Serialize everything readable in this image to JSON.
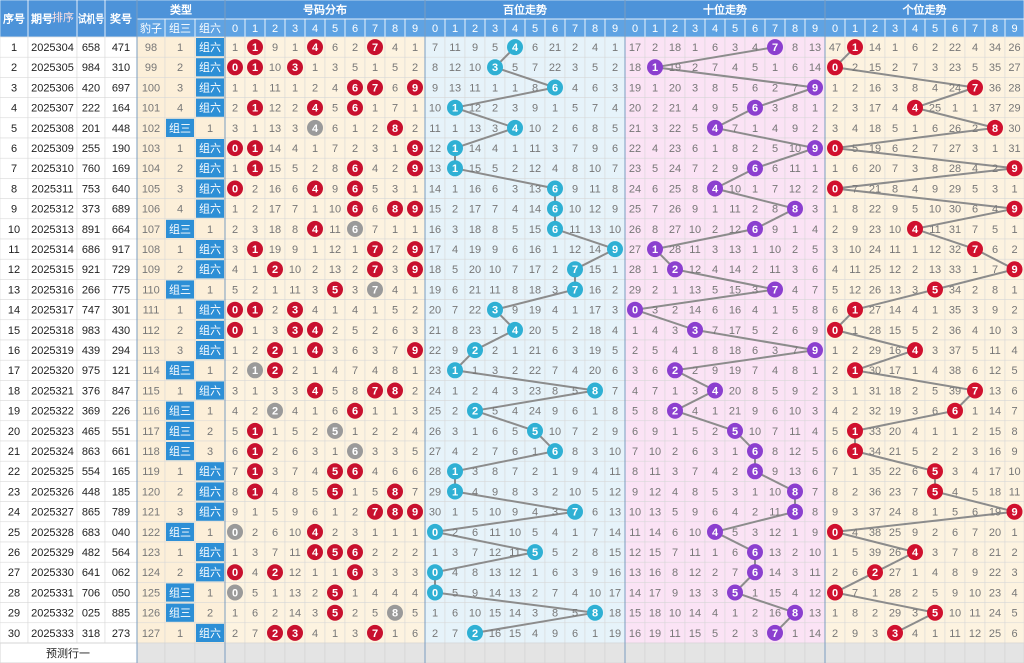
{
  "header": {
    "seq": "序号",
    "issue": "期号",
    "sort": "排序",
    "trial": "试机号",
    "prize": "奖号",
    "type": "类型",
    "types": [
      "豹子",
      "组三",
      "组六"
    ],
    "groups": [
      "号码分布",
      "百位走势",
      "十位走势",
      "个位走势"
    ],
    "digits": [
      "0",
      "1",
      "2",
      "3",
      "4",
      "5",
      "6",
      "7",
      "8",
      "9"
    ]
  },
  "rows": [
    [
      "1",
      "2025304",
      "658",
      "471",
      "98",
      "1",
      "组六",
      "1",
      "1",
      "9",
      "1",
      "4",
      "6",
      "2",
      "7",
      "4",
      "1",
      "7",
      "11",
      "9",
      "5",
      "4",
      "6",
      "21",
      "2",
      "4",
      "1",
      "17",
      "2",
      "18",
      "1",
      "6",
      "3",
      "4",
      "7",
      "8",
      "13",
      "47",
      "1",
      "14",
      "1",
      "6",
      "2",
      "22",
      "4",
      "34",
      "26"
    ],
    [
      "2",
      "2025305",
      "984",
      "310",
      "99",
      "2",
      "组六",
      "0",
      "1",
      "10",
      "3",
      "1",
      "3",
      "5",
      "1",
      "5",
      "2",
      "8",
      "12",
      "10",
      "3",
      "5",
      "7",
      "22",
      "3",
      "5",
      "2",
      "18",
      "1",
      "19",
      "2",
      "7",
      "4",
      "5",
      "1",
      "6",
      "14",
      "0",
      "2",
      "15",
      "2",
      "7",
      "3",
      "23",
      "5",
      "35",
      "27"
    ],
    [
      "3",
      "2025306",
      "420",
      "697",
      "100",
      "3",
      "组六",
      "1",
      "1",
      "11",
      "1",
      "2",
      "4",
      "6",
      "7",
      "6",
      "9",
      "9",
      "13",
      "11",
      "1",
      "1",
      "8",
      "6",
      "4",
      "6",
      "3",
      "19",
      "1",
      "20",
      "3",
      "8",
      "5",
      "6",
      "2",
      "7",
      "9",
      "1",
      "2",
      "16",
      "3",
      "8",
      "4",
      "24",
      "7",
      "36",
      "28"
    ],
    [
      "4",
      "2025307",
      "222",
      "164",
      "101",
      "4",
      "组六",
      "2",
      "1",
      "12",
      "2",
      "4",
      "5",
      "6",
      "1",
      "7",
      "1",
      "10",
      "1",
      "12",
      "2",
      "3",
      "9",
      "1",
      "5",
      "7",
      "4",
      "20",
      "2",
      "21",
      "4",
      "9",
      "5",
      "6",
      "3",
      "8",
      "1",
      "2",
      "3",
      "17",
      "4",
      "4",
      "25",
      "1",
      "1",
      "37",
      "29"
    ],
    [
      "5",
      "2025308",
      "201",
      "448",
      "102",
      "组三",
      "1",
      "3",
      "1",
      "13",
      "3",
      "4",
      "6",
      "1",
      "2",
      "8",
      "2",
      "11",
      "1",
      "13",
      "3",
      "4",
      "10",
      "2",
      "6",
      "8",
      "5",
      "21",
      "3",
      "22",
      "5",
      "4",
      "7",
      "1",
      "4",
      "9",
      "2",
      "3",
      "4",
      "18",
      "5",
      "1",
      "6",
      "26",
      "2",
      "8",
      "30"
    ],
    [
      "6",
      "2025309",
      "255",
      "190",
      "103",
      "1",
      "组六",
      "0",
      "1",
      "14",
      "4",
      "1",
      "7",
      "2",
      "3",
      "1",
      "9",
      "12",
      "1",
      "14",
      "4",
      "1",
      "11",
      "3",
      "7",
      "9",
      "6",
      "22",
      "4",
      "23",
      "6",
      "1",
      "8",
      "2",
      "5",
      "10",
      "9",
      "0",
      "5",
      "19",
      "6",
      "2",
      "7",
      "27",
      "3",
      "1",
      "31"
    ],
    [
      "7",
      "2025310",
      "760",
      "169",
      "104",
      "2",
      "组六",
      "1",
      "1",
      "15",
      "5",
      "2",
      "8",
      "6",
      "4",
      "2",
      "9",
      "13",
      "1",
      "15",
      "5",
      "2",
      "12",
      "4",
      "8",
      "10",
      "7",
      "23",
      "5",
      "24",
      "7",
      "2",
      "9",
      "6",
      "6",
      "11",
      "1",
      "1",
      "6",
      "20",
      "7",
      "3",
      "8",
      "28",
      "4",
      "2",
      "9"
    ],
    [
      "8",
      "2025311",
      "753",
      "640",
      "105",
      "3",
      "组六",
      "0",
      "2",
      "16",
      "6",
      "4",
      "9",
      "6",
      "5",
      "3",
      "1",
      "14",
      "1",
      "16",
      "6",
      "3",
      "13",
      "6",
      "9",
      "11",
      "8",
      "24",
      "6",
      "25",
      "8",
      "4",
      "10",
      "1",
      "7",
      "12",
      "2",
      "0",
      "7",
      "21",
      "8",
      "4",
      "9",
      "29",
      "5",
      "3",
      "1"
    ],
    [
      "9",
      "2025312",
      "373",
      "689",
      "106",
      "4",
      "组六",
      "1",
      "2",
      "17",
      "7",
      "1",
      "10",
      "6",
      "6",
      "8",
      "9",
      "15",
      "2",
      "17",
      "7",
      "4",
      "14",
      "6",
      "10",
      "12",
      "9",
      "25",
      "7",
      "26",
      "9",
      "1",
      "11",
      "2",
      "8",
      "8",
      "3",
      "1",
      "8",
      "22",
      "9",
      "5",
      "10",
      "30",
      "6",
      "4",
      "9"
    ],
    [
      "10",
      "2025313",
      "891",
      "664",
      "107",
      "组三",
      "1",
      "2",
      "3",
      "18",
      "8",
      "4",
      "11",
      "6",
      "7",
      "1",
      "1",
      "16",
      "3",
      "18",
      "8",
      "5",
      "15",
      "6",
      "11",
      "13",
      "10",
      "26",
      "8",
      "27",
      "10",
      "2",
      "12",
      "6",
      "9",
      "1",
      "4",
      "2",
      "9",
      "23",
      "10",
      "4",
      "11",
      "31",
      "7",
      "5",
      "1"
    ],
    [
      "11",
      "2025314",
      "686",
      "917",
      "108",
      "1",
      "组六",
      "3",
      "1",
      "19",
      "9",
      "1",
      "12",
      "1",
      "7",
      "2",
      "9",
      "17",
      "4",
      "19",
      "9",
      "6",
      "16",
      "1",
      "12",
      "14",
      "9",
      "27",
      "1",
      "28",
      "11",
      "3",
      "13",
      "1",
      "10",
      "2",
      "5",
      "3",
      "10",
      "24",
      "11",
      "1",
      "12",
      "32",
      "7",
      "6",
      "2"
    ],
    [
      "12",
      "2025315",
      "921",
      "729",
      "109",
      "2",
      "组六",
      "4",
      "1",
      "2",
      "10",
      "2",
      "13",
      "2",
      "7",
      "3",
      "9",
      "18",
      "5",
      "20",
      "10",
      "7",
      "17",
      "2",
      "7",
      "15",
      "1",
      "28",
      "1",
      "2",
      "12",
      "4",
      "14",
      "2",
      "11",
      "3",
      "6",
      "4",
      "11",
      "25",
      "12",
      "2",
      "13",
      "33",
      "1",
      "7",
      "9"
    ],
    [
      "13",
      "2025316",
      "266",
      "775",
      "110",
      "组三",
      "1",
      "5",
      "2",
      "1",
      "11",
      "3",
      "5",
      "3",
      "7",
      "4",
      "1",
      "19",
      "6",
      "21",
      "11",
      "8",
      "18",
      "3",
      "7",
      "16",
      "2",
      "29",
      "2",
      "1",
      "13",
      "5",
      "15",
      "3",
      "7",
      "4",
      "7",
      "5",
      "12",
      "26",
      "13",
      "3",
      "5",
      "34",
      "2",
      "8",
      "1"
    ],
    [
      "14",
      "2025317",
      "747",
      "301",
      "111",
      "1",
      "组六",
      "0",
      "1",
      "2",
      "3",
      "4",
      "1",
      "4",
      "1",
      "5",
      "2",
      "20",
      "7",
      "22",
      "3",
      "9",
      "19",
      "4",
      "1",
      "17",
      "3",
      "0",
      "3",
      "2",
      "14",
      "6",
      "16",
      "4",
      "1",
      "5",
      "8",
      "6",
      "1",
      "27",
      "14",
      "4",
      "1",
      "35",
      "3",
      "9",
      "2"
    ],
    [
      "15",
      "2025318",
      "983",
      "430",
      "112",
      "2",
      "组六",
      "0",
      "1",
      "3",
      "3",
      "4",
      "2",
      "5",
      "2",
      "6",
      "3",
      "21",
      "8",
      "23",
      "1",
      "4",
      "20",
      "5",
      "2",
      "18",
      "4",
      "1",
      "4",
      "3",
      "3",
      "7",
      "17",
      "5",
      "2",
      "6",
      "9",
      "0",
      "1",
      "28",
      "15",
      "5",
      "2",
      "36",
      "4",
      "10",
      "3"
    ],
    [
      "16",
      "2025319",
      "439",
      "294",
      "113",
      "3",
      "组六",
      "1",
      "2",
      "2",
      "1",
      "4",
      "3",
      "6",
      "3",
      "7",
      "9",
      "22",
      "9",
      "2",
      "2",
      "1",
      "21",
      "6",
      "3",
      "19",
      "5",
      "2",
      "5",
      "4",
      "1",
      "8",
      "18",
      "6",
      "3",
      "7",
      "9",
      "1",
      "2",
      "29",
      "16",
      "4",
      "3",
      "37",
      "5",
      "11",
      "4"
    ],
    [
      "17",
      "2025320",
      "975",
      "121",
      "114",
      "组三",
      "1",
      "2",
      "1",
      "2",
      "2",
      "1",
      "4",
      "7",
      "4",
      "8",
      "1",
      "23",
      "1",
      "1",
      "3",
      "2",
      "22",
      "7",
      "4",
      "20",
      "6",
      "3",
      "6",
      "2",
      "2",
      "9",
      "19",
      "7",
      "4",
      "8",
      "1",
      "2",
      "1",
      "30",
      "17",
      "1",
      "4",
      "38",
      "6",
      "12",
      "5"
    ],
    [
      "18",
      "2025321",
      "376",
      "847",
      "115",
      "1",
      "组六",
      "3",
      "1",
      "3",
      "3",
      "4",
      "5",
      "8",
      "7",
      "8",
      "2",
      "24",
      "1",
      "2",
      "4",
      "3",
      "23",
      "8",
      "5",
      "8",
      "7",
      "4",
      "7",
      "1",
      "3",
      "4",
      "20",
      "8",
      "5",
      "9",
      "2",
      "3",
      "1",
      "31",
      "18",
      "2",
      "5",
      "39",
      "7",
      "13",
      "6"
    ],
    [
      "19",
      "2025322",
      "369",
      "226",
      "116",
      "组三",
      "1",
      "4",
      "2",
      "2",
      "4",
      "1",
      "6",
      "6",
      "1",
      "1",
      "3",
      "25",
      "2",
      "2",
      "5",
      "4",
      "24",
      "9",
      "6",
      "1",
      "8",
      "5",
      "8",
      "2",
      "4",
      "1",
      "21",
      "9",
      "6",
      "10",
      "3",
      "4",
      "2",
      "32",
      "19",
      "3",
      "6",
      "6",
      "1",
      "14",
      "7"
    ],
    [
      "20",
      "2025323",
      "465",
      "551",
      "117",
      "组三",
      "2",
      "5",
      "1",
      "1",
      "5",
      "2",
      "5",
      "1",
      "2",
      "2",
      "4",
      "26",
      "3",
      "1",
      "6",
      "5",
      "5",
      "10",
      "7",
      "2",
      "9",
      "6",
      "9",
      "1",
      "5",
      "2",
      "5",
      "10",
      "7",
      "11",
      "4",
      "5",
      "1",
      "33",
      "20",
      "4",
      "1",
      "1",
      "2",
      "15",
      "8"
    ],
    [
      "21",
      "2025324",
      "863",
      "661",
      "118",
      "组三",
      "3",
      "6",
      "1",
      "2",
      "6",
      "3",
      "1",
      "6",
      "3",
      "3",
      "5",
      "27",
      "4",
      "2",
      "7",
      "6",
      "1",
      "6",
      "8",
      "3",
      "10",
      "7",
      "10",
      "2",
      "6",
      "3",
      "1",
      "6",
      "8",
      "12",
      "5",
      "6",
      "1",
      "34",
      "21",
      "5",
      "2",
      "2",
      "3",
      "16",
      "9"
    ],
    [
      "22",
      "2025325",
      "554",
      "165",
      "119",
      "1",
      "组六",
      "7",
      "1",
      "3",
      "7",
      "4",
      "5",
      "6",
      "4",
      "6",
      "6",
      "28",
      "1",
      "3",
      "8",
      "7",
      "2",
      "1",
      "9",
      "4",
      "11",
      "8",
      "11",
      "3",
      "7",
      "4",
      "2",
      "6",
      "9",
      "13",
      "6",
      "7",
      "1",
      "35",
      "22",
      "6",
      "5",
      "3",
      "4",
      "17",
      "10"
    ],
    [
      "23",
      "2025326",
      "448",
      "185",
      "120",
      "2",
      "组六",
      "8",
      "1",
      "4",
      "8",
      "5",
      "5",
      "1",
      "5",
      "8",
      "7",
      "29",
      "1",
      "4",
      "9",
      "8",
      "3",
      "2",
      "10",
      "5",
      "12",
      "9",
      "12",
      "4",
      "8",
      "5",
      "3",
      "1",
      "10",
      "8",
      "7",
      "8",
      "2",
      "36",
      "23",
      "7",
      "5",
      "4",
      "5",
      "18",
      "11"
    ],
    [
      "24",
      "2025327",
      "865",
      "789",
      "121",
      "3",
      "组六",
      "9",
      "1",
      "5",
      "9",
      "6",
      "1",
      "2",
      "7",
      "8",
      "9",
      "30",
      "1",
      "5",
      "10",
      "9",
      "4",
      "3",
      "7",
      "6",
      "13",
      "10",
      "13",
      "5",
      "9",
      "6",
      "4",
      "2",
      "11",
      "8",
      "8",
      "9",
      "3",
      "37",
      "24",
      "8",
      "1",
      "5",
      "6",
      "19",
      "9"
    ],
    [
      "25",
      "2025328",
      "683",
      "040",
      "122",
      "组三",
      "1",
      "0",
      "2",
      "6",
      "10",
      "4",
      "2",
      "3",
      "1",
      "1",
      "1",
      "0",
      "2",
      "6",
      "11",
      "10",
      "5",
      "4",
      "1",
      "7",
      "14",
      "11",
      "14",
      "6",
      "10",
      "4",
      "5",
      "3",
      "12",
      "1",
      "9",
      "0",
      "4",
      "38",
      "25",
      "9",
      "2",
      "6",
      "7",
      "20",
      "1"
    ],
    [
      "26",
      "2025329",
      "482",
      "564",
      "123",
      "1",
      "组六",
      "1",
      "3",
      "7",
      "11",
      "4",
      "5",
      "6",
      "2",
      "2",
      "2",
      "1",
      "3",
      "7",
      "12",
      "11",
      "5",
      "5",
      "2",
      "8",
      "15",
      "12",
      "15",
      "7",
      "11",
      "1",
      "6",
      "6",
      "13",
      "2",
      "10",
      "1",
      "5",
      "39",
      "26",
      "4",
      "3",
      "7",
      "8",
      "21",
      "2"
    ],
    [
      "27",
      "2025330",
      "641",
      "062",
      "124",
      "2",
      "组六",
      "0",
      "4",
      "2",
      "12",
      "1",
      "1",
      "6",
      "3",
      "3",
      "3",
      "0",
      "4",
      "8",
      "13",
      "12",
      "1",
      "6",
      "3",
      "9",
      "16",
      "13",
      "16",
      "8",
      "12",
      "2",
      "7",
      "6",
      "14",
      "3",
      "11",
      "2",
      "6",
      "2",
      "27",
      "1",
      "4",
      "8",
      "9",
      "22",
      "3"
    ],
    [
      "28",
      "2025331",
      "706",
      "050",
      "125",
      "组三",
      "1",
      "0",
      "5",
      "1",
      "13",
      "2",
      "5",
      "1",
      "4",
      "4",
      "4",
      "0",
      "5",
      "9",
      "14",
      "13",
      "2",
      "7",
      "4",
      "10",
      "17",
      "14",
      "17",
      "9",
      "13",
      "3",
      "5",
      "1",
      "15",
      "4",
      "12",
      "0",
      "7",
      "1",
      "28",
      "2",
      "5",
      "9",
      "10",
      "23",
      "4"
    ],
    [
      "29",
      "2025332",
      "025",
      "885",
      "126",
      "组三",
      "2",
      "1",
      "6",
      "2",
      "14",
      "3",
      "5",
      "2",
      "5",
      "8",
      "5",
      "1",
      "6",
      "10",
      "15",
      "14",
      "3",
      "8",
      "5",
      "8",
      "18",
      "15",
      "18",
      "10",
      "14",
      "4",
      "1",
      "2",
      "16",
      "8",
      "13",
      "1",
      "8",
      "2",
      "29",
      "3",
      "5",
      "10",
      "11",
      "24",
      "5"
    ],
    [
      "30",
      "2025333",
      "318",
      "273",
      "127",
      "1",
      "组六",
      "2",
      "7",
      "2",
      "3",
      "4",
      "1",
      "3",
      "7",
      "1",
      "6",
      "2",
      "7",
      "2",
      "16",
      "15",
      "4",
      "9",
      "6",
      "1",
      "19",
      "16",
      "19",
      "11",
      "15",
      "5",
      "2",
      "3",
      "7",
      "1",
      "14",
      "2",
      "9",
      "3",
      "3",
      "4",
      "1",
      "11",
      "12",
      "25",
      "6"
    ]
  ],
  "footer": "预测行一"
}
